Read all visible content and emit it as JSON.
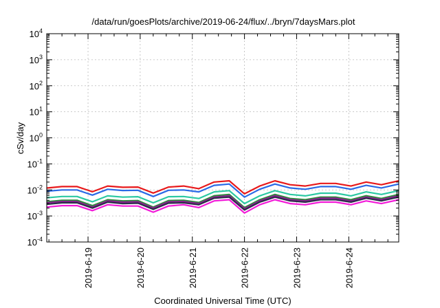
{
  "chart_data": {
    "type": "line",
    "title": "/data/run/goesPlots/archive/2019-06-24/flux/../bryn/7daysMars.plot",
    "xlabel": "Coordinated Universal Time (UTC)",
    "ylabel": "cSv/day",
    "y_scale": "log",
    "ylim": [
      0.0001,
      10000
    ],
    "xlim": [
      "2019-06-18 05:00",
      "2019-06-24 23:00"
    ],
    "grid": true,
    "x_ticks": [
      "2019-6-19",
      "2019-6-20",
      "2019-6-21",
      "2019-6-22",
      "2019-6-23",
      "2019-6-24"
    ],
    "y_ticks": [
      {
        "base": "10",
        "exp": "-4"
      },
      {
        "base": "10",
        "exp": "-3"
      },
      {
        "base": "10",
        "exp": "-2"
      },
      {
        "base": "10",
        "exp": "-1"
      },
      {
        "base": "10",
        "exp": "0"
      },
      {
        "base": "10",
        "exp": "1"
      },
      {
        "base": "10",
        "exp": "2"
      },
      {
        "base": "10",
        "exp": "3"
      },
      {
        "base": "10",
        "exp": "4"
      }
    ],
    "x": [
      "2019-06-18 05:00",
      "2019-06-18 12:00",
      "2019-06-18 19:00",
      "2019-06-19 02:00",
      "2019-06-19 09:00",
      "2019-06-19 16:00",
      "2019-06-19 23:00",
      "2019-06-20 06:00",
      "2019-06-20 13:00",
      "2019-06-20 20:00",
      "2019-06-21 03:00",
      "2019-06-21 10:00",
      "2019-06-21 17:00",
      "2019-06-22 00:00",
      "2019-06-22 07:00",
      "2019-06-22 14:00",
      "2019-06-22 21:00",
      "2019-06-23 04:00",
      "2019-06-23 11:00",
      "2019-06-23 18:00",
      "2019-06-24 01:00",
      "2019-06-24 08:00",
      "2019-06-24 15:00",
      "2019-06-24 23:00"
    ],
    "series": [
      {
        "color": "#e8191b",
        "values": [
          0.0118,
          0.0134,
          0.0134,
          0.0085,
          0.0141,
          0.0126,
          0.0129,
          0.0076,
          0.0129,
          0.0141,
          0.0112,
          0.02,
          0.0224,
          0.0071,
          0.0141,
          0.0224,
          0.0158,
          0.0141,
          0.0178,
          0.0178,
          0.0141,
          0.02,
          0.0158,
          0.0224
        ]
      },
      {
        "color": "#2a6ae6",
        "values": [
          0.0089,
          0.01,
          0.01,
          0.0063,
          0.0106,
          0.0095,
          0.0097,
          0.0056,
          0.0097,
          0.01,
          0.0084,
          0.015,
          0.0168,
          0.0053,
          0.0106,
          0.0168,
          0.0119,
          0.0106,
          0.0134,
          0.0134,
          0.0106,
          0.015,
          0.0119,
          0.0168
        ]
      },
      {
        "color": "#2bc9a2",
        "values": [
          0.005,
          0.0056,
          0.0056,
          0.0035,
          0.0059,
          0.0053,
          0.0055,
          0.0032,
          0.0055,
          0.0056,
          0.0047,
          0.0084,
          0.0094,
          0.003,
          0.0059,
          0.0094,
          0.0067,
          0.0059,
          0.0075,
          0.0075,
          0.0059,
          0.0084,
          0.0067,
          0.0094
        ]
      },
      {
        "color": "#2e8b3a",
        "values": [
          0.0035,
          0.004,
          0.004,
          0.0025,
          0.0042,
          0.0038,
          0.0039,
          0.0022,
          0.0039,
          0.004,
          0.0033,
          0.006,
          0.0067,
          0.0021,
          0.0042,
          0.0067,
          0.0047,
          0.0042,
          0.0053,
          0.0053,
          0.0042,
          0.006,
          0.0047,
          0.0067
        ]
      },
      {
        "color": "#8a1f8f",
        "values": [
          0.0032,
          0.0036,
          0.0036,
          0.0022,
          0.0038,
          0.0034,
          0.0035,
          0.002,
          0.0035,
          0.0036,
          0.003,
          0.0053,
          0.006,
          0.0019,
          0.0038,
          0.006,
          0.0042,
          0.0038,
          0.0048,
          0.0048,
          0.0038,
          0.0053,
          0.0042,
          0.006
        ]
      },
      {
        "color": "#2c2c4a",
        "values": [
          0.0028,
          0.0032,
          0.0032,
          0.002,
          0.0034,
          0.003,
          0.0031,
          0.0018,
          0.0031,
          0.0032,
          0.0027,
          0.0048,
          0.0053,
          0.0017,
          0.0034,
          0.0053,
          0.0038,
          0.0034,
          0.0042,
          0.0042,
          0.0034,
          0.0048,
          0.0038,
          0.0053
        ]
      },
      {
        "color": "#f21ad8",
        "values": [
          0.0022,
          0.0025,
          0.0025,
          0.0016,
          0.0027,
          0.0024,
          0.0024,
          0.0014,
          0.0024,
          0.0027,
          0.0021,
          0.0038,
          0.0042,
          0.0013,
          0.0027,
          0.0042,
          0.003,
          0.0027,
          0.0034,
          0.0034,
          0.0027,
          0.0038,
          0.003,
          0.0042
        ]
      }
    ]
  }
}
